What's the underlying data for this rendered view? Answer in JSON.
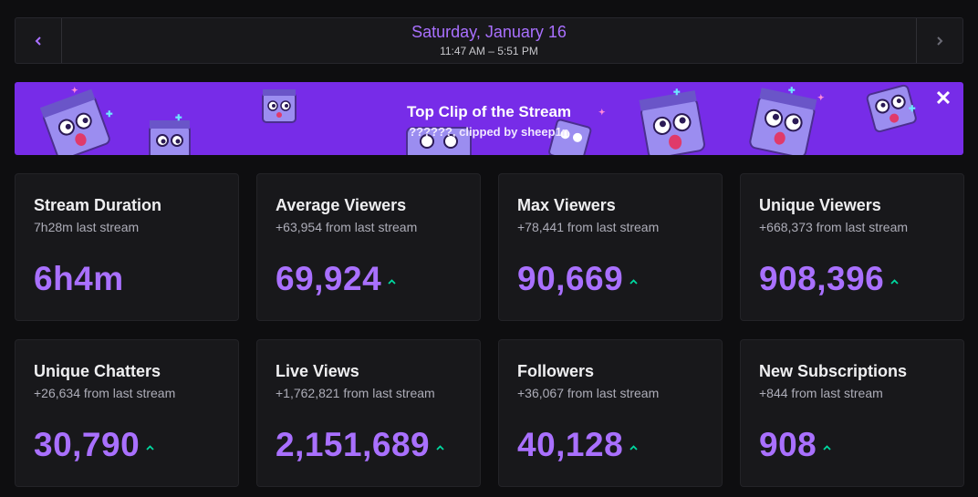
{
  "date_nav": {
    "date": "Saturday, January 16",
    "time_range": "11:47 AM – 5:51 PM",
    "prev_icon": "chevron-left-icon",
    "next_icon": "chevron-right-icon"
  },
  "banner": {
    "title": "Top Clip of the Stream",
    "subtitle": "??????, clipped by sheep1n",
    "close_icon": "close-icon",
    "background": "#772ce8"
  },
  "colors": {
    "accent": "#a970ff",
    "increase": "#00d9a0",
    "card_bg": "#18181b",
    "page_bg": "#0e0e10"
  },
  "stats": [
    {
      "title": "Stream Duration",
      "subtitle": "7h28m last stream",
      "value": "6h4m",
      "trend": "none"
    },
    {
      "title": "Average Viewers",
      "subtitle": "+63,954 from last stream",
      "value": "69,924",
      "trend": "up"
    },
    {
      "title": "Max Viewers",
      "subtitle": "+78,441 from last stream",
      "value": "90,669",
      "trend": "up"
    },
    {
      "title": "Unique Viewers",
      "subtitle": "+668,373 from last stream",
      "value": "908,396",
      "trend": "up"
    },
    {
      "title": "Unique Chatters",
      "subtitle": "+26,634 from last stream",
      "value": "30,790",
      "trend": "up"
    },
    {
      "title": "Live Views",
      "subtitle": "+1,762,821 from last stream",
      "value": "2,151,689",
      "trend": "up"
    },
    {
      "title": "Followers",
      "subtitle": "+36,067 from last stream",
      "value": "40,128",
      "trend": "up"
    },
    {
      "title": "New Subscriptions",
      "subtitle": "+844 from last stream",
      "value": "908",
      "trend": "up"
    }
  ]
}
